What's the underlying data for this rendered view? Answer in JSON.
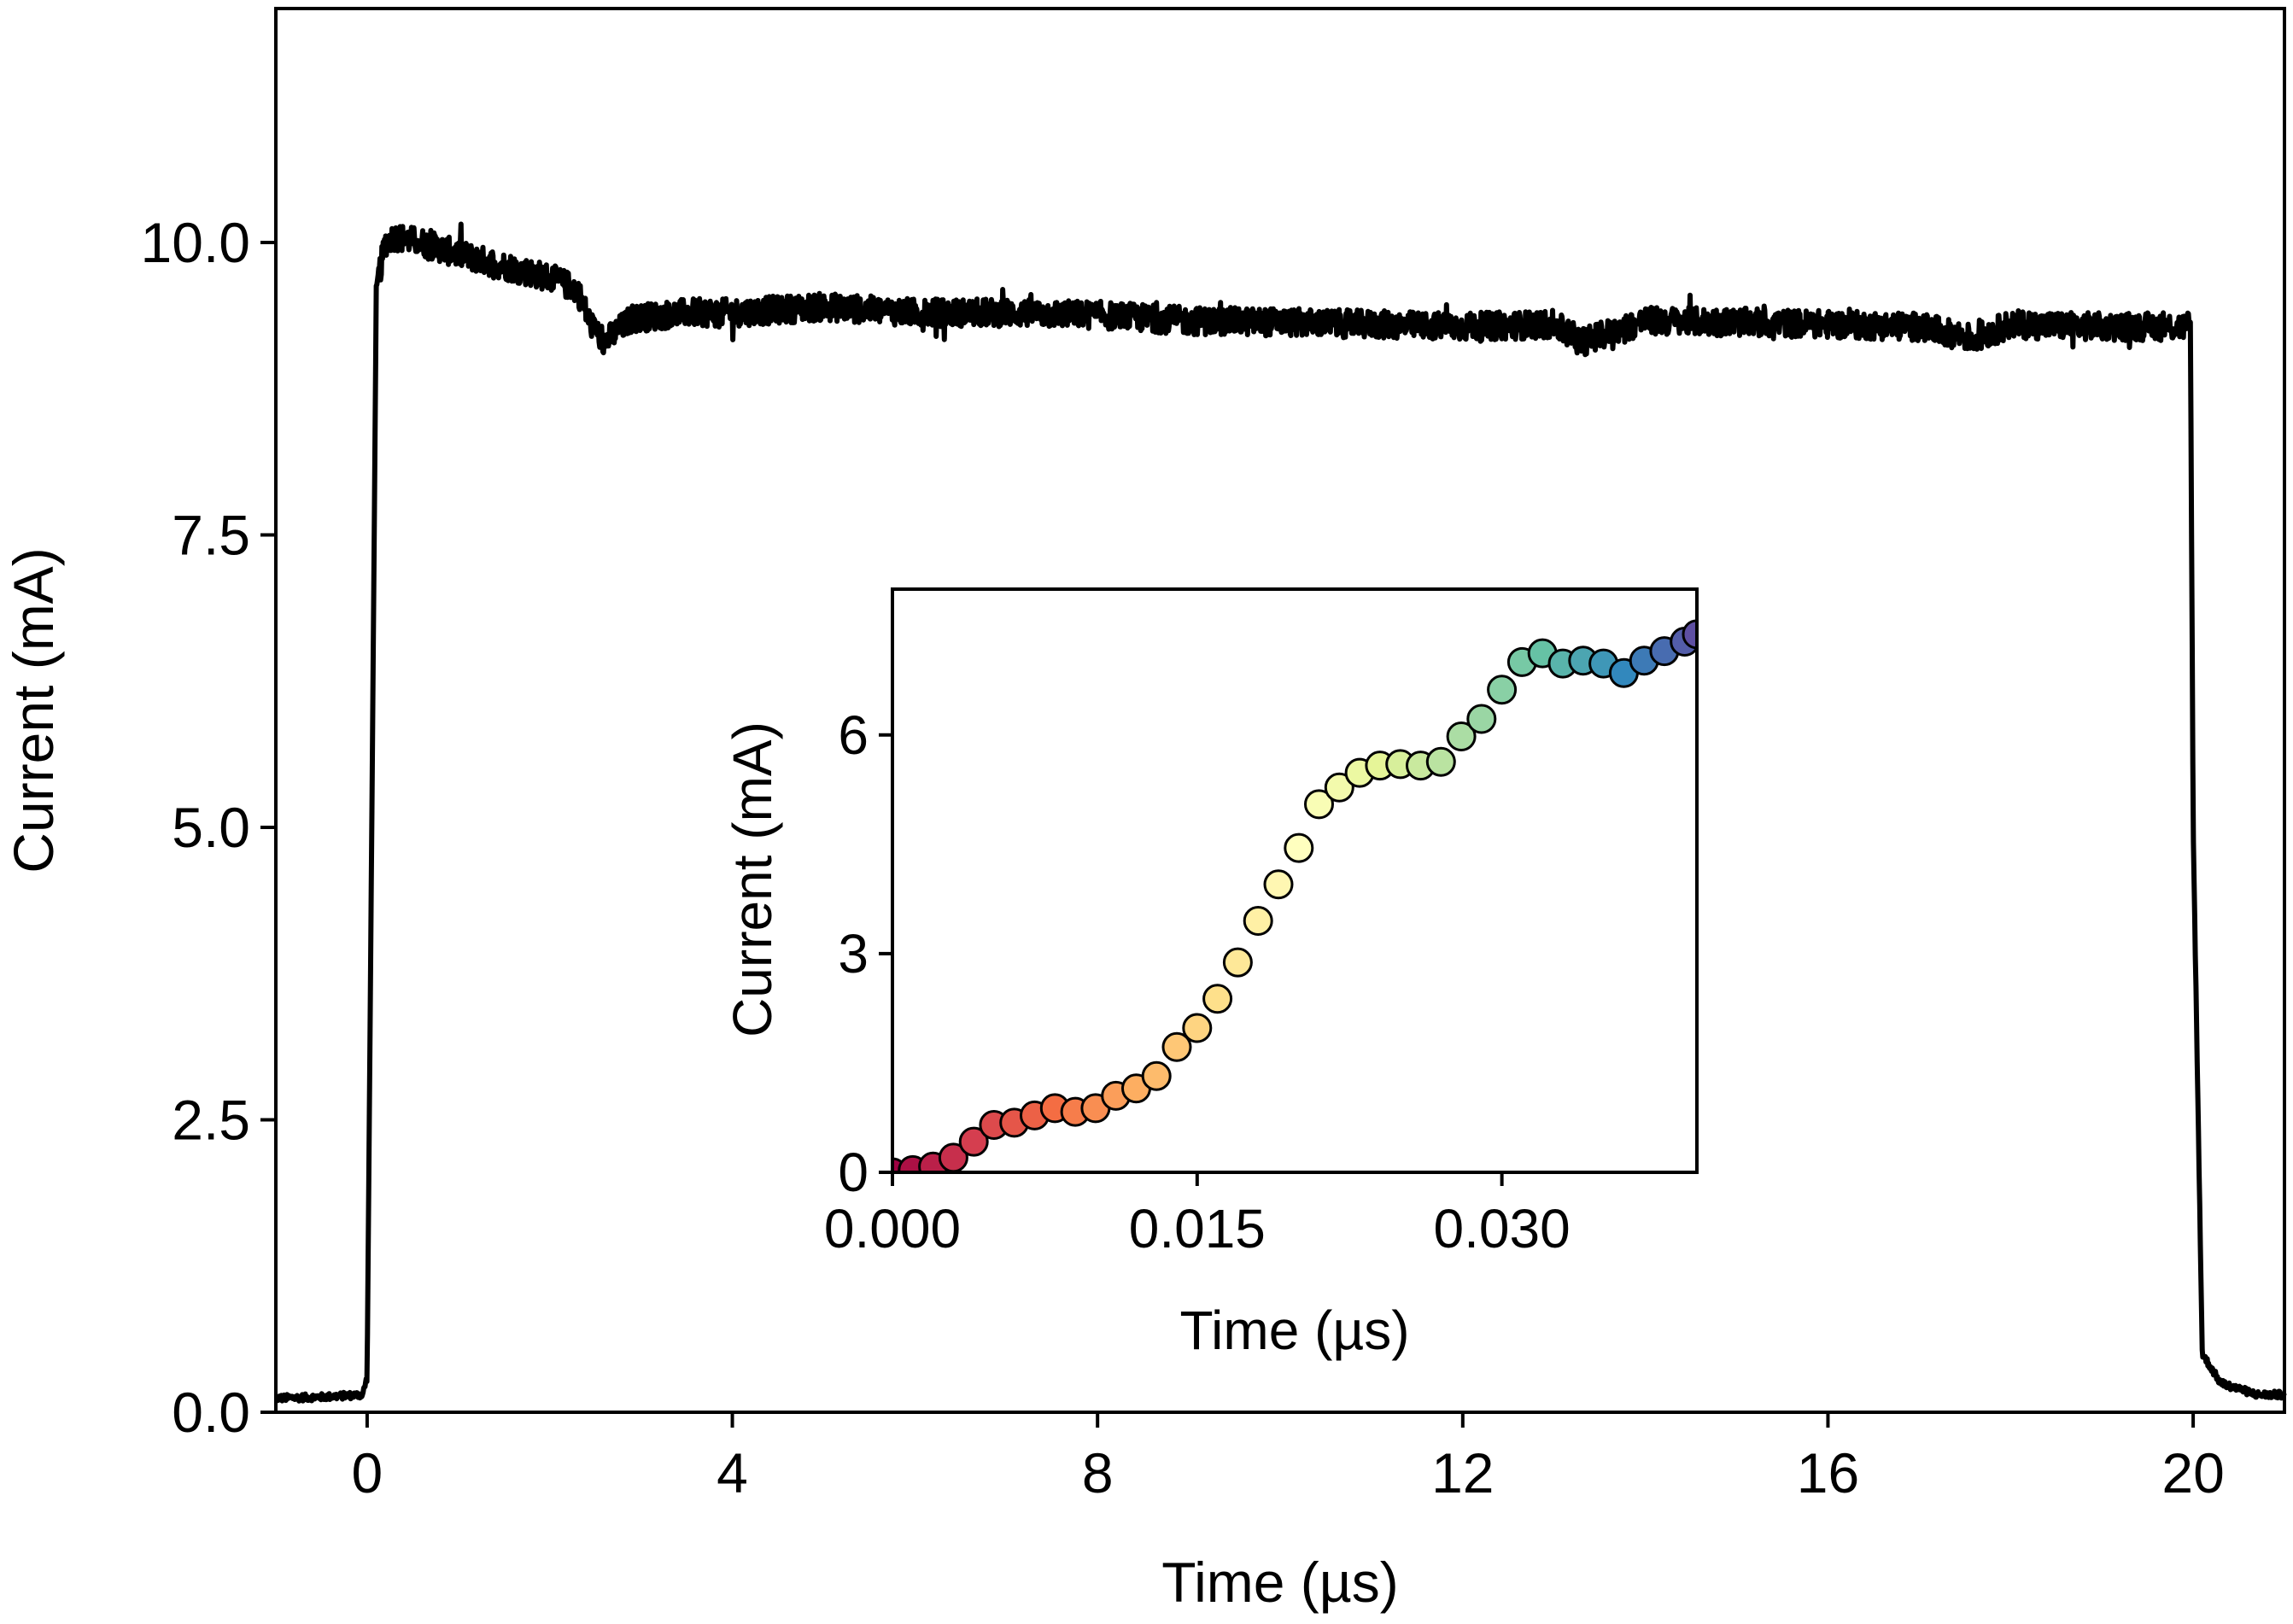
{
  "chart_data": [
    {
      "id": "main",
      "type": "line",
      "title": "",
      "xlabel": "Time (µs)",
      "ylabel": "Current (mA)",
      "xlim": [
        -1,
        21
      ],
      "ylim": [
        0,
        12
      ],
      "xticks": [
        0,
        4,
        8,
        12,
        16,
        20
      ],
      "xtick_labels": [
        "0",
        "4",
        "8",
        "12",
        "16",
        "20"
      ],
      "yticks": [
        0,
        2.5,
        5,
        7.5,
        10
      ],
      "ytick_labels": [
        "0.0",
        "2.5",
        "5.0",
        "7.5",
        "10.0"
      ],
      "grid": false,
      "series": [
        {
          "name": "current",
          "color": "#000000",
          "noise_amplitude": 0.12,
          "x": [
            -1.0,
            -0.5,
            -0.05,
            0.0,
            0.1,
            0.2,
            0.3,
            0.6,
            1.0,
            1.5,
            2.0,
            2.3,
            2.45,
            2.6,
            2.9,
            3.5,
            4.0,
            5.0,
            6.0,
            7.0,
            8.0,
            9.0,
            10.0,
            11.0,
            12.0,
            13.0,
            13.3,
            14.0,
            15.0,
            16.0,
            17.0,
            17.6,
            18.0,
            19.0,
            19.9,
            19.97,
            20.0,
            20.1,
            20.3,
            20.7,
            21.0
          ],
          "y": [
            0.12,
            0.13,
            0.15,
            0.3,
            9.6,
            10.0,
            10.05,
            10.0,
            9.9,
            9.8,
            9.7,
            9.6,
            9.3,
            9.15,
            9.35,
            9.4,
            9.4,
            9.45,
            9.4,
            9.4,
            9.38,
            9.33,
            9.32,
            9.3,
            9.28,
            9.3,
            9.15,
            9.33,
            9.32,
            9.3,
            9.28,
            9.18,
            9.3,
            9.28,
            9.28,
            9.3,
            5.0,
            0.5,
            0.25,
            0.15,
            0.15
          ]
        }
      ]
    },
    {
      "id": "inset",
      "type": "scatter",
      "title": "",
      "xlabel": "Time (µs)",
      "ylabel": "Current (mA)",
      "xlim": [
        0.0,
        0.0396
      ],
      "ylim": [
        0,
        8
      ],
      "xticks": [
        0.0,
        0.015,
        0.03
      ],
      "xtick_labels": [
        "0.000",
        "0.015",
        "0.030"
      ],
      "yticks": [
        0,
        3,
        6
      ],
      "ytick_labels": [
        "0",
        "3",
        "6"
      ],
      "grid": false,
      "colormap": "spectral",
      "colormap_stops": [
        "#9e0142",
        "#d53e4f",
        "#f46d43",
        "#fdae61",
        "#fee08b",
        "#ffffbf",
        "#e6f598",
        "#abdda4",
        "#66c2a5",
        "#3288bd",
        "#5e4fa2"
      ],
      "series": [
        {
          "name": "current",
          "x": [
            0.0,
            0.001,
            0.002,
            0.003,
            0.004,
            0.005,
            0.006,
            0.007,
            0.008,
            0.009,
            0.01,
            0.011,
            0.012,
            0.013,
            0.014,
            0.015,
            0.016,
            0.017,
            0.018,
            0.019,
            0.02,
            0.021,
            0.022,
            0.023,
            0.024,
            0.025,
            0.026,
            0.027,
            0.028,
            0.029,
            0.03,
            0.031,
            0.032,
            0.033,
            0.034,
            0.035,
            0.036,
            0.037,
            0.038,
            0.039,
            0.0396
          ],
          "y": [
            0.0,
            0.03,
            0.08,
            0.2,
            0.42,
            0.65,
            0.68,
            0.78,
            0.88,
            0.83,
            0.88,
            1.05,
            1.15,
            1.32,
            1.72,
            1.98,
            2.38,
            2.88,
            3.45,
            3.95,
            4.45,
            5.05,
            5.28,
            5.48,
            5.58,
            5.6,
            5.58,
            5.63,
            5.98,
            6.22,
            6.62,
            7.0,
            7.12,
            6.98,
            7.02,
            6.98,
            6.85,
            7.02,
            7.15,
            7.28,
            7.38
          ]
        }
      ]
    }
  ]
}
